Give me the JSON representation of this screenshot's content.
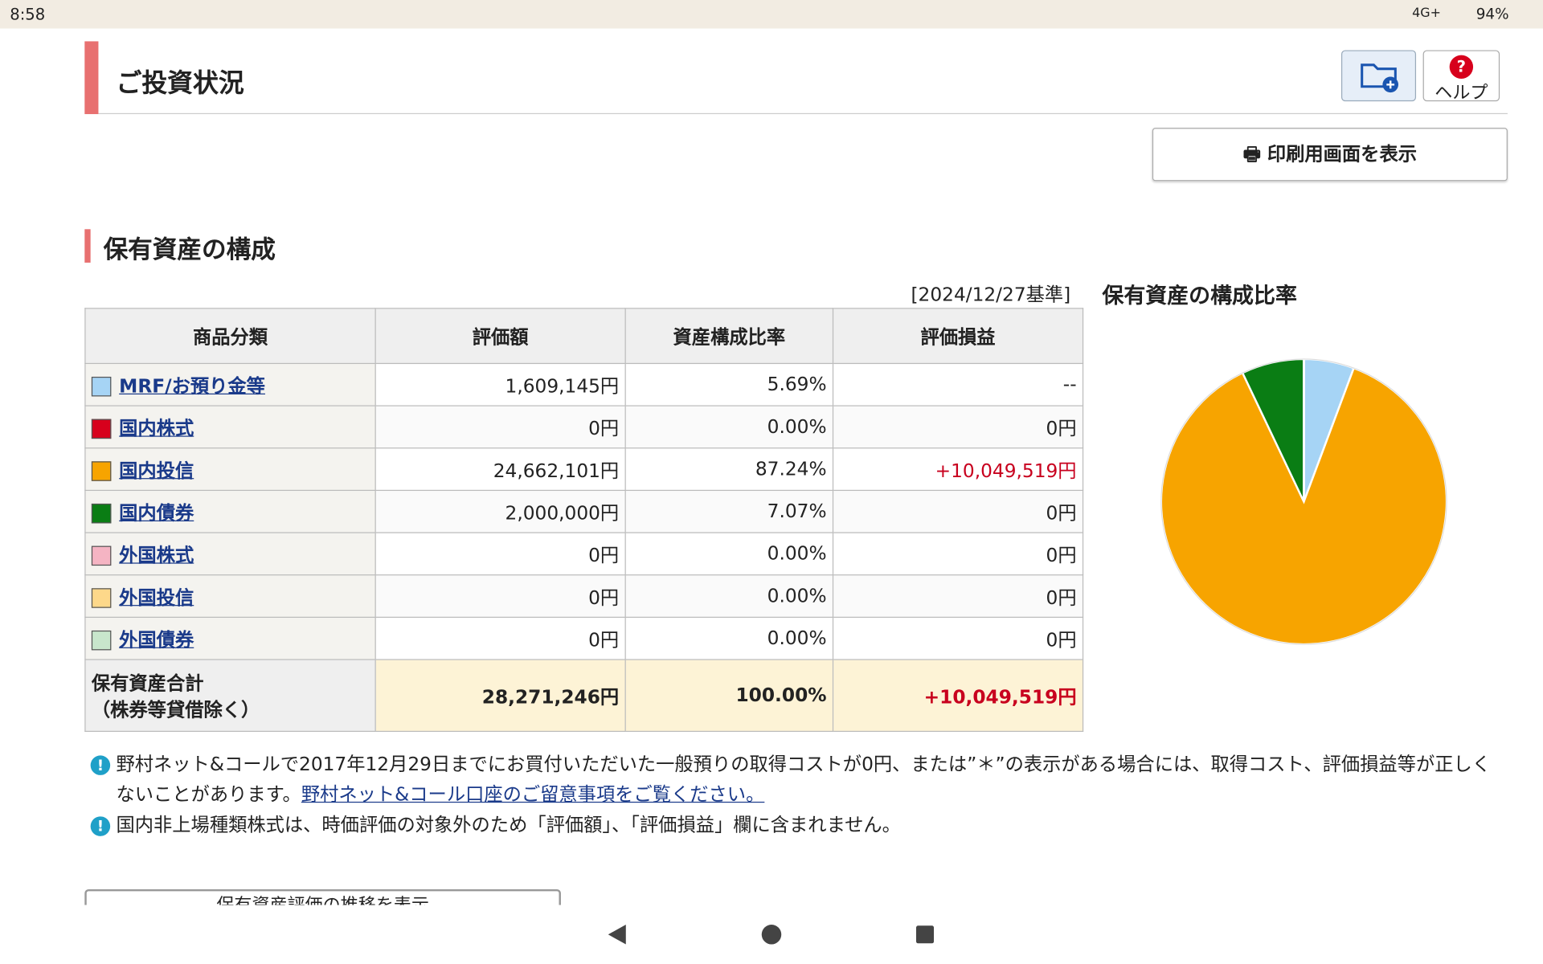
{
  "status_bar": {
    "time": "8:58",
    "network": "4G+",
    "battery": "94%"
  },
  "header": {
    "title": "ご投資状況",
    "help": "ヘルプ",
    "print": "印刷用画面を表示"
  },
  "section": {
    "title": "保有資産の構成",
    "date": "[2024/12/27基準]"
  },
  "table": {
    "headers": [
      "商品分類",
      "評価額",
      "資産構成比率",
      "評価損益"
    ],
    "colors": [
      "#a6d4f5",
      "#d7001c",
      "#f7a400",
      "#0a7d14",
      "#f5b4c3",
      "#fdd88a",
      "#c8e6cc"
    ],
    "rows": [
      [
        "MRF/お預り金等",
        "1,609,145円",
        "5.69%",
        "--"
      ],
      [
        "国内株式",
        "0円",
        "0.00%",
        "0円"
      ],
      [
        "国内投信",
        "24,662,101円",
        "87.24%",
        "+10,049,519円"
      ],
      [
        "国内債券",
        "2,000,000円",
        "7.07%",
        "0円"
      ],
      [
        "外国株式",
        "0円",
        "0.00%",
        "0円"
      ],
      [
        "外国投信",
        "0円",
        "0.00%",
        "0円"
      ],
      [
        "外国債券",
        "0円",
        "0.00%",
        "0円"
      ]
    ],
    "total": {
      "label": [
        "保有資産合計",
        "（株券等貸借除く）"
      ],
      "value": "28,271,246円",
      "ratio": "100.00%",
      "pl": "+10,049,519円"
    }
  },
  "notes": [
    {
      "text": "野村ネット&コールで2017年12月29日までにお買付いただいた一般預りの取得コストが0円、または”＊”の表示がある場合には、取得コスト、評価損益等が正しくないことがあります。",
      "link": "野村ネット&コール口座のご留意事項をご覧ください。"
    },
    {
      "text": "国内非上場種類株式は、時価評価の対象外のため「評価額」、「評価損益」欄に含まれません。"
    }
  ],
  "history_button": "保有資産評価の推移を表示",
  "chart_data": {
    "type": "pie",
    "title": "保有資産の構成比率",
    "values": [
      5.69,
      0,
      87.24,
      7.07,
      0,
      0,
      0
    ],
    "colors": [
      "#a6d4f5",
      "#d7001c",
      "#f7a400",
      "#0a7d14",
      "#f5b4c3",
      "#fdd88a",
      "#c8e6cc"
    ]
  }
}
